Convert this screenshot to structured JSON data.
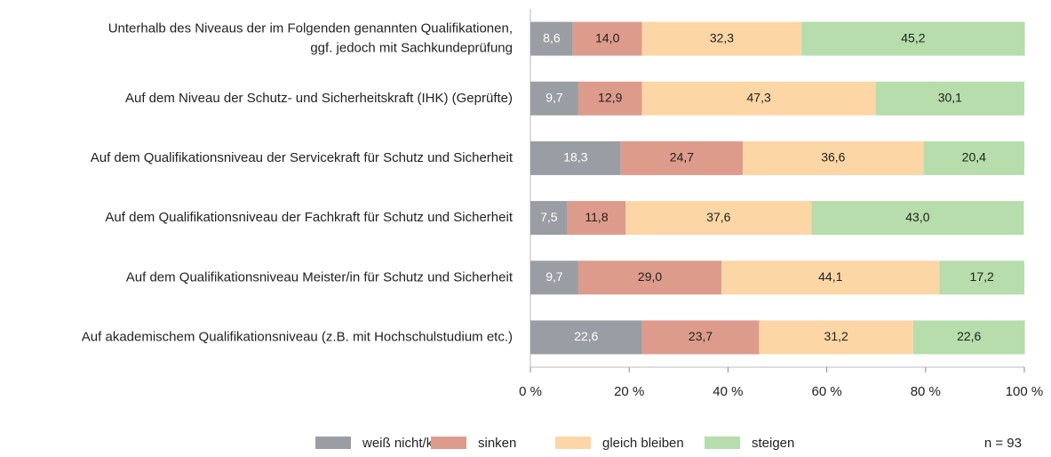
{
  "chart_data": {
    "type": "stacked_barh",
    "categories": [
      "Unterhalb des Niveaus der im Folgenden genannten Qualifikationen,\nggf. jedoch mit Sachkundeprüfung",
      "Auf dem Niveau der Schutz- und Sicherheitskraft (IHK) (Geprüfte)",
      "Auf dem Qualifikationsniveau der Servicekraft für Schutz und Sicherheit",
      "Auf dem Qualifikationsniveau der Fachkraft für Schutz und Sicherheit",
      "Auf dem Qualifikationsniveau Meister/in für Schutz und Sicherheit",
      "Auf akademischem Qualifikationsniveau (z.B. mit Hochschulstudium etc.)"
    ],
    "series": [
      {
        "name": "weiß nicht/k. A.",
        "color": "#9b9da4",
        "values": [
          8.6,
          9.7,
          18.3,
          7.5,
          9.7,
          22.6
        ],
        "value_labels": [
          "8,6",
          "9,7",
          "18,3",
          "7,5",
          "9,7",
          "22,6"
        ]
      },
      {
        "name": "sinken",
        "color": "#dd9b8b",
        "values": [
          14.0,
          12.9,
          24.7,
          11.8,
          29.0,
          23.7
        ],
        "value_labels": [
          "14,0",
          "12,9",
          "24,7",
          "11,8",
          "29,0",
          "23,7"
        ]
      },
      {
        "name": "gleich bleiben",
        "color": "#fdd6a6",
        "values": [
          32.3,
          47.3,
          36.6,
          37.6,
          44.1,
          31.2
        ],
        "value_labels": [
          "32,3",
          "47,3",
          "36,6",
          "37,6",
          "44,1",
          "31,2"
        ]
      },
      {
        "name": "steigen",
        "color": "#b6ddab",
        "values": [
          45.2,
          30.1,
          20.4,
          43.0,
          17.2,
          22.6
        ],
        "value_labels": [
          "45,2",
          "30,1",
          "20,4",
          "43,0",
          "17,2",
          "22,6"
        ]
      }
    ],
    "xlim": [
      0,
      100
    ],
    "xticks": [
      {
        "value": 0,
        "label": "0 %"
      },
      {
        "value": 20,
        "label": "20 %"
      },
      {
        "value": 40,
        "label": "40 %"
      },
      {
        "value": 60,
        "label": "60 %"
      },
      {
        "value": 80,
        "label": "80 %"
      },
      {
        "value": 100,
        "label": "100 %"
      }
    ],
    "note": "n = 93",
    "legend": "bottom"
  }
}
